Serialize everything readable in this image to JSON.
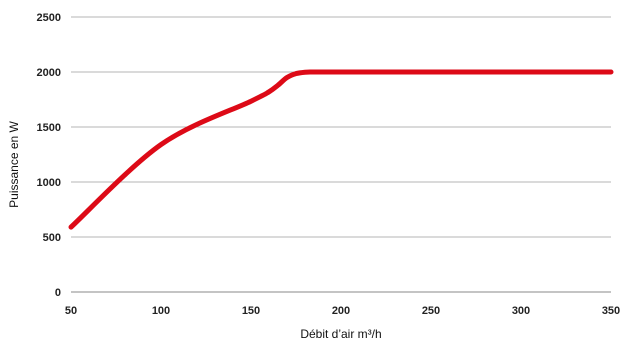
{
  "chart_data": {
    "type": "line",
    "title": "",
    "xlabel": "Débit d’air m³/h",
    "ylabel": "Puissance en W",
    "xlim": [
      50,
      350
    ],
    "ylim": [
      0,
      2500
    ],
    "x_ticks": [
      50,
      100,
      150,
      200,
      250,
      300,
      350
    ],
    "y_ticks": [
      0,
      500,
      1000,
      1500,
      2000,
      2500
    ],
    "grid": true,
    "legend": "none",
    "colors": {
      "line": "#dd0a17",
      "grid": "#b4b4b4",
      "axis": "#8a8a8a"
    },
    "series": [
      {
        "x": [
          50,
          100,
          150,
          160,
          165,
          170,
          175,
          180,
          185,
          200,
          250,
          300,
          350
        ],
        "y": [
          590,
          1340,
          1735,
          1820,
          1880,
          1950,
          1985,
          1998,
          2000,
          2000,
          2000,
          2000,
          2000
        ]
      }
    ]
  }
}
